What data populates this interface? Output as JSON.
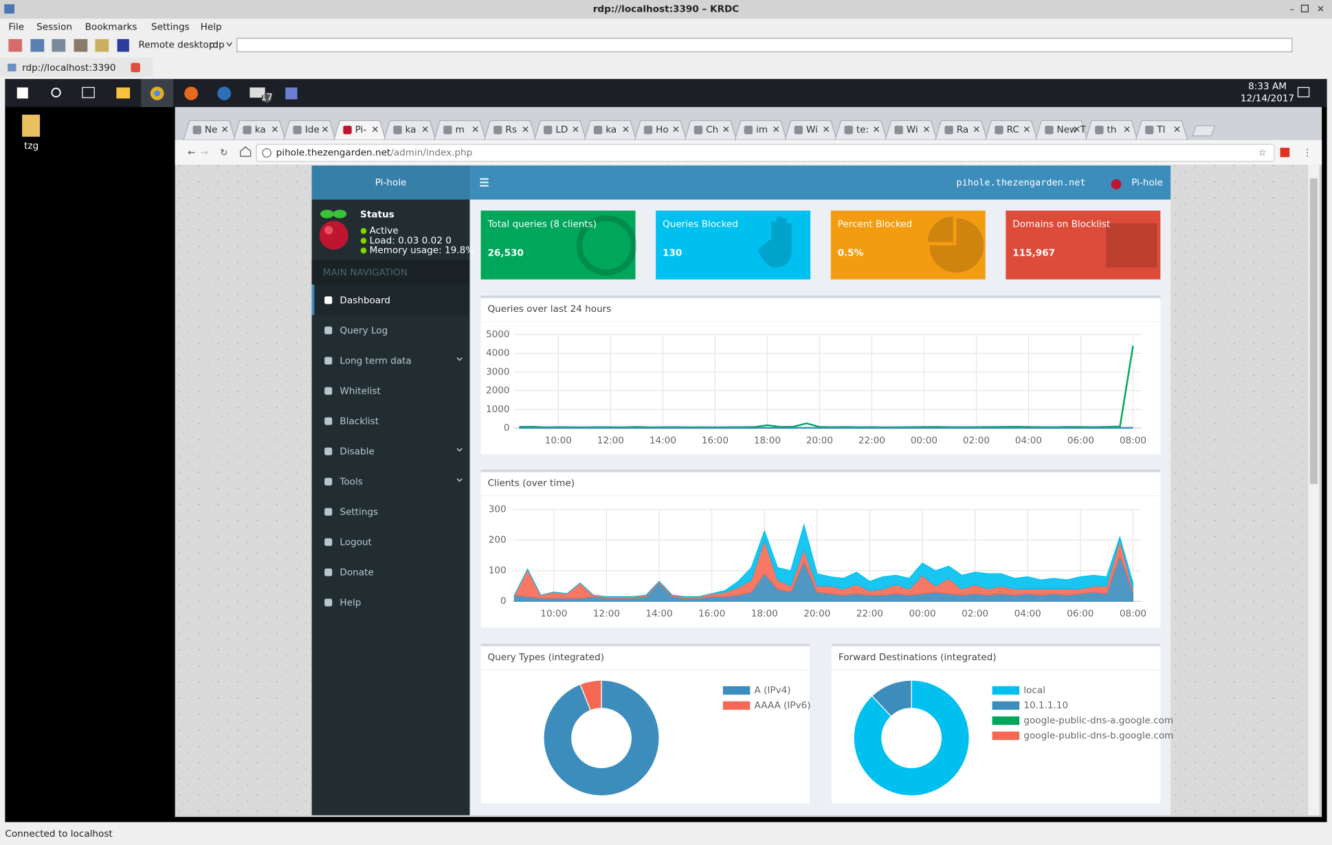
{
  "window": {
    "title": "rdp://localhost:3390 – KRDC",
    "menu": [
      "File",
      "Session",
      "Bookmarks",
      "Settings",
      "Help"
    ],
    "remote_label": "Remote desktop:",
    "protocol": "rdp",
    "tab": "rdp://localhost:3390",
    "status": "Connected to localhost"
  },
  "desktop": {
    "icon": "tzg",
    "mail_badge": "17",
    "clock_time": "8:33 AM",
    "clock_date": "12/14/2017"
  },
  "browser": {
    "tabs": [
      "Ne",
      "ka",
      "Ide",
      "Pi-",
      "ka",
      "m",
      "Rs",
      "LD",
      "ka",
      "Ho",
      "Ch",
      "im",
      "Wi",
      "te:",
      "Wi",
      "Ra",
      "RC",
      "New T",
      "th",
      "Tl"
    ],
    "url_host": "pihole.thezengarden.net",
    "url_path": "/admin/index.php"
  },
  "pihole": {
    "brand": "Pi-hole",
    "host": "pihole.thezengarden.net",
    "user": "Pi-hole",
    "status": "Status",
    "status_items": [
      "Active",
      "Load: 0.03 0.02 0",
      "Memory usage: 19.8%"
    ],
    "nav_header": "MAIN NAVIGATION",
    "nav": [
      "Dashboard",
      "Query Log",
      "Long term data",
      "Whitelist",
      "Blacklist",
      "Disable",
      "Tools",
      "Settings",
      "Logout",
      "Donate",
      "Help"
    ],
    "stats": [
      {
        "label": "Total queries (8 clients)",
        "value": "26,530",
        "color": "#00a65a"
      },
      {
        "label": "Queries Blocked",
        "value": "130",
        "color": "#00c0ef"
      },
      {
        "label": "Percent Blocked",
        "value": "0.5%",
        "color": "#f39c12"
      },
      {
        "label": "Domains on Blocklist",
        "value": "115,967",
        "color": "#dd4b39"
      }
    ]
  },
  "charts": [
    {
      "type": "line",
      "title": "Queries over last 24 hours",
      "x": [
        8.5,
        9,
        9.5,
        10,
        10.5,
        11,
        11.5,
        12,
        12.5,
        13,
        13.5,
        14,
        14.5,
        15,
        15.5,
        16,
        16.5,
        17,
        17.5,
        18,
        18.5,
        19,
        19.5,
        20,
        20.5,
        21,
        21.5,
        22,
        22.5,
        23,
        23.5,
        24,
        24.5,
        25,
        25.5,
        26,
        26.5,
        27,
        27.5,
        28,
        28.5,
        29,
        29.5,
        30,
        30.5,
        31,
        31.5,
        32
      ],
      "xlim": [
        8.3,
        32.3
      ],
      "xticks": [
        {
          "value": 10,
          "label": "10:00"
        },
        {
          "value": 12,
          "label": "12:00"
        },
        {
          "value": 14,
          "label": "14:00"
        },
        {
          "value": 16,
          "label": "16:00"
        },
        {
          "value": 18,
          "label": "18:00"
        },
        {
          "value": 20,
          "label": "20:00"
        },
        {
          "value": 22,
          "label": "22:00"
        },
        {
          "value": 24,
          "label": "00:00"
        },
        {
          "value": 26,
          "label": "02:00"
        },
        {
          "value": 28,
          "label": "04:00"
        },
        {
          "value": 30,
          "label": "06:00"
        },
        {
          "value": 32,
          "label": "08:00"
        }
      ],
      "ylim": [
        0,
        5000
      ],
      "yticks": [
        0,
        1000,
        2000,
        3000,
        4000,
        5000
      ],
      "grid": true,
      "series": [
        {
          "color": "#00a65a",
          "values": [
            60,
            70,
            40,
            50,
            45,
            40,
            50,
            45,
            40,
            60,
            40,
            45,
            50,
            40,
            45,
            40,
            45,
            50,
            55,
            150,
            60,
            70,
            250,
            60,
            50,
            55,
            45,
            50,
            40,
            45,
            50,
            55,
            60,
            50,
            45,
            50,
            55,
            60,
            70,
            55,
            50,
            45,
            60,
            55,
            50,
            60,
            80,
            4400
          ]
        },
        {
          "color": "#3c8dbc",
          "values": [
            5,
            5,
            5,
            5,
            5,
            5,
            5,
            5,
            5,
            5,
            5,
            5,
            5,
            5,
            5,
            5,
            5,
            5,
            5,
            10,
            5,
            5,
            10,
            5,
            5,
            5,
            5,
            5,
            5,
            5,
            5,
            5,
            5,
            5,
            5,
            5,
            5,
            5,
            5,
            5,
            5,
            5,
            5,
            5,
            5,
            5,
            5,
            10
          ]
        }
      ]
    },
    {
      "type": "area",
      "stacked": true,
      "title": "Clients (over time)",
      "x": [
        8.5,
        9,
        9.5,
        10,
        10.5,
        11,
        11.5,
        12,
        12.5,
        13,
        13.5,
        14,
        14.5,
        15,
        15.5,
        16,
        16.5,
        17,
        17.5,
        18,
        18.5,
        19,
        19.5,
        20,
        20.5,
        21,
        21.5,
        22,
        22.5,
        23,
        23.5,
        24,
        24.5,
        25,
        25.5,
        26,
        26.5,
        27,
        27.5,
        28,
        28.5,
        29,
        29.5,
        30,
        30.5,
        31,
        31.5,
        32
      ],
      "xlim": [
        8.45,
        32.3
      ],
      "xticks": [
        {
          "value": 10,
          "label": "10:00"
        },
        {
          "value": 12,
          "label": "12:00"
        },
        {
          "value": 14,
          "label": "14:00"
        },
        {
          "value": 16,
          "label": "16:00"
        },
        {
          "value": 18,
          "label": "18:00"
        },
        {
          "value": 20,
          "label": "20:00"
        },
        {
          "value": 22,
          "label": "22:00"
        },
        {
          "value": 24,
          "label": "00:00"
        },
        {
          "value": 26,
          "label": "02:00"
        },
        {
          "value": 28,
          "label": "04:00"
        },
        {
          "value": 30,
          "label": "06:00"
        },
        {
          "value": 32,
          "label": "08:00"
        }
      ],
      "ylim": [
        0,
        300
      ],
      "yticks": [
        0,
        100,
        200,
        300
      ],
      "grid": true,
      "series": [
        {
          "color": "#3c8dbc",
          "values": [
            20,
            15,
            10,
            10,
            10,
            10,
            15,
            10,
            10,
            10,
            15,
            60,
            15,
            10,
            10,
            15,
            15,
            20,
            30,
            90,
            40,
            30,
            130,
            30,
            25,
            20,
            25,
            20,
            20,
            25,
            20,
            25,
            30,
            25,
            20,
            25,
            20,
            25,
            20,
            25,
            20,
            25,
            20,
            25,
            30,
            25,
            150,
            30
          ]
        },
        {
          "color": "#f56954",
          "values": [
            0,
            90,
            10,
            20,
            15,
            50,
            5,
            5,
            5,
            5,
            5,
            5,
            5,
            5,
            5,
            10,
            15,
            25,
            40,
            110,
            30,
            20,
            40,
            20,
            25,
            20,
            30,
            15,
            20,
            30,
            20,
            60,
            20,
            50,
            20,
            30,
            20,
            25,
            20,
            15,
            20,
            15,
            20,
            15,
            20,
            25,
            50,
            10
          ]
        },
        {
          "color": "#00c0ef",
          "values": [
            0,
            0,
            0,
            0,
            0,
            0,
            0,
            0,
            0,
            0,
            0,
            0,
            0,
            0,
            0,
            0,
            5,
            20,
            40,
            30,
            40,
            50,
            80,
            40,
            30,
            35,
            40,
            30,
            40,
            30,
            35,
            40,
            50,
            40,
            45,
            40,
            50,
            40,
            35,
            40,
            30,
            35,
            30,
            40,
            35,
            30,
            10,
            20
          ]
        }
      ]
    },
    {
      "type": "doughnut",
      "title": "Query Types (integrated)",
      "categories": [
        "A (IPv4)",
        "AAAA (IPv6)"
      ],
      "values": [
        94,
        6
      ],
      "colors": [
        "#3c8dbc",
        "#f56954"
      ]
    },
    {
      "type": "doughnut",
      "title": "Forward Destinations (integrated)",
      "categories": [
        "local",
        "10.1.1.10",
        "google-public-dns-a.google.com",
        "google-public-dns-b.google.com"
      ],
      "values": [
        88,
        12,
        0,
        0
      ],
      "colors": [
        "#00c0ef",
        "#3c8dbc",
        "#00a65a",
        "#f56954"
      ]
    }
  ]
}
